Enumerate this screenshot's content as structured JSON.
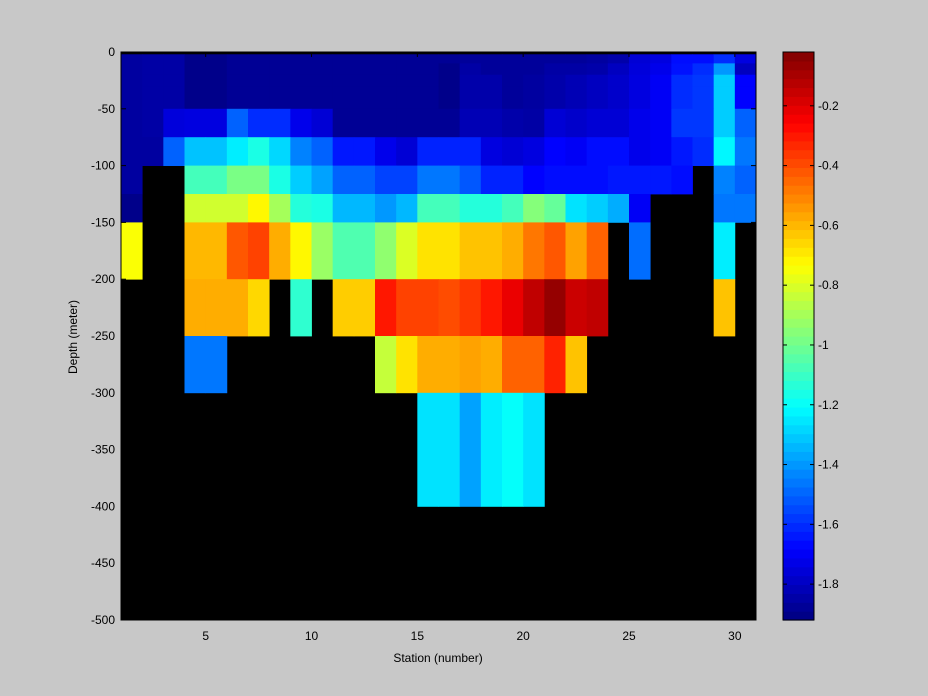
{
  "chart_data": {
    "type": "heatmap",
    "title": "",
    "xlabel": "Station (number)",
    "ylabel": "Depth (meter)",
    "xlim": [
      1,
      31
    ],
    "ylim": [
      -500,
      0
    ],
    "x_ticks": [
      5,
      10,
      15,
      20,
      25,
      30
    ],
    "y_ticks": [
      0,
      -50,
      -100,
      -150,
      -200,
      -250,
      -300,
      -350,
      -400,
      -450,
      -500
    ],
    "stations": [
      1,
      2,
      3,
      4,
      5,
      6,
      7,
      8,
      9,
      10,
      11,
      12,
      13,
      14,
      15,
      16,
      17,
      18,
      19,
      20,
      21,
      22,
      23,
      24,
      25,
      26,
      27,
      28,
      29,
      30
    ],
    "depth_bins": [
      {
        "top": 0,
        "bottom": -2
      },
      {
        "top": -2,
        "bottom": -10
      },
      {
        "top": -10,
        "bottom": -20
      },
      {
        "top": -20,
        "bottom": -30
      },
      {
        "top": -30,
        "bottom": -50
      },
      {
        "top": -50,
        "bottom": -75
      },
      {
        "top": -75,
        "bottom": -100
      },
      {
        "top": -100,
        "bottom": -125
      },
      {
        "top": -125,
        "bottom": -150
      },
      {
        "top": -150,
        "bottom": -200
      },
      {
        "top": -200,
        "bottom": -250
      },
      {
        "top": -250,
        "bottom": -300
      },
      {
        "top": -300,
        "bottom": -400
      },
      {
        "top": -400,
        "bottom": -500
      }
    ],
    "values": [
      [
        null,
        null,
        null,
        null,
        null,
        null,
        null,
        null,
        null,
        null,
        null,
        null,
        null,
        null,
        null,
        null,
        null,
        null,
        null,
        null,
        null,
        null,
        null,
        null,
        null,
        null,
        null,
        null,
        null,
        null
      ],
      [
        -1.86,
        -1.85,
        -1.85,
        -1.9,
        -1.9,
        -1.88,
        -1.88,
        -1.88,
        -1.88,
        -1.88,
        -1.88,
        -1.88,
        -1.88,
        -1.88,
        -1.88,
        -1.88,
        -1.87,
        -1.87,
        -1.87,
        -1.87,
        -1.87,
        -1.87,
        -1.86,
        -1.84,
        -1.76,
        -1.74,
        -1.66,
        -1.66,
        -1.6,
        -1.74
      ],
      [
        -1.86,
        -1.85,
        -1.85,
        -1.9,
        -1.9,
        -1.88,
        -1.88,
        -1.88,
        -1.88,
        -1.88,
        -1.88,
        -1.88,
        -1.88,
        -1.88,
        -1.88,
        -1.9,
        -1.85,
        -1.87,
        -1.87,
        -1.87,
        -1.85,
        -1.85,
        -1.84,
        -1.8,
        -1.75,
        -1.72,
        -1.65,
        -1.6,
        -1.4,
        -1.8
      ],
      [
        -1.86,
        -1.85,
        -1.85,
        -1.9,
        -1.9,
        -1.88,
        -1.88,
        -1.88,
        -1.88,
        -1.88,
        -1.88,
        -1.88,
        -1.88,
        -1.88,
        -1.88,
        -1.9,
        -1.84,
        -1.84,
        -1.87,
        -1.86,
        -1.84,
        -1.82,
        -1.8,
        -1.78,
        -1.74,
        -1.7,
        -1.6,
        -1.58,
        -1.3,
        -1.68
      ],
      [
        -1.86,
        -1.85,
        -1.85,
        -1.9,
        -1.9,
        -1.88,
        -1.88,
        -1.88,
        -1.88,
        -1.88,
        -1.88,
        -1.88,
        -1.88,
        -1.88,
        -1.88,
        -1.9,
        -1.84,
        -1.84,
        -1.87,
        -1.86,
        -1.84,
        -1.82,
        -1.8,
        -1.78,
        -1.74,
        -1.7,
        -1.6,
        -1.58,
        -1.3,
        -1.68
      ],
      [
        -1.86,
        -1.85,
        -1.75,
        -1.74,
        -1.74,
        -1.5,
        -1.6,
        -1.6,
        -1.72,
        -1.76,
        -1.88,
        -1.88,
        -1.88,
        -1.88,
        -1.88,
        -1.88,
        -1.82,
        -1.82,
        -1.84,
        -1.85,
        -1.76,
        -1.78,
        -1.76,
        -1.76,
        -1.72,
        -1.7,
        -1.58,
        -1.58,
        -1.3,
        -1.5
      ],
      [
        -1.86,
        -1.86,
        -1.5,
        -1.32,
        -1.32,
        -1.24,
        -1.16,
        -1.28,
        -1.44,
        -1.5,
        -1.64,
        -1.64,
        -1.72,
        -1.76,
        -1.62,
        -1.62,
        -1.62,
        -1.74,
        -1.76,
        -1.74,
        -1.68,
        -1.7,
        -1.66,
        -1.66,
        -1.72,
        -1.7,
        -1.64,
        -1.6,
        -1.22,
        -1.46
      ],
      [
        -1.86,
        null,
        null,
        -1.08,
        -1.08,
        -0.98,
        -0.98,
        -1.16,
        -1.3,
        -1.38,
        -1.5,
        -1.5,
        -1.56,
        -1.56,
        -1.46,
        -1.46,
        -1.52,
        -1.62,
        -1.62,
        -1.68,
        -1.66,
        -1.66,
        -1.66,
        -1.64,
        -1.64,
        -1.64,
        -1.66,
        null,
        -1.44,
        -1.5
      ],
      [
        -1.9,
        null,
        null,
        -0.82,
        -0.82,
        -0.82,
        -0.72,
        -0.9,
        -1.14,
        -1.16,
        -1.34,
        -1.34,
        -1.4,
        -1.34,
        -1.08,
        -1.08,
        -1.14,
        -1.14,
        -1.08,
        -0.96,
        -1.02,
        -1.26,
        -1.3,
        -1.36,
        -1.7,
        null,
        null,
        null,
        -1.46,
        -1.46
      ],
      [
        -0.74,
        null,
        null,
        -0.6,
        -0.6,
        -0.42,
        -0.38,
        -0.58,
        -0.72,
        -0.92,
        -1.06,
        -1.06,
        -0.94,
        -0.8,
        -0.68,
        -0.68,
        -0.62,
        -0.62,
        -0.58,
        -0.48,
        -0.42,
        -0.56,
        -0.44,
        null,
        -1.48,
        null,
        null,
        null,
        -1.24,
        null
      ],
      [
        null,
        null,
        null,
        -0.58,
        -0.58,
        -0.58,
        -0.66,
        null,
        -1.12,
        null,
        -0.64,
        -0.64,
        -0.3,
        -0.38,
        -0.38,
        -0.4,
        -0.36,
        -0.3,
        -0.22,
        -0.14,
        -0.06,
        -0.16,
        -0.14,
        null,
        null,
        null,
        null,
        null,
        -0.62,
        null
      ],
      [
        null,
        null,
        null,
        -1.46,
        -1.46,
        null,
        null,
        null,
        null,
        null,
        null,
        null,
        -0.84,
        -0.68,
        -0.58,
        -0.58,
        -0.56,
        -0.58,
        -0.44,
        -0.44,
        -0.32,
        -0.62,
        null,
        null,
        null,
        null,
        null,
        null,
        null,
        null
      ],
      [
        null,
        null,
        null,
        null,
        null,
        null,
        null,
        null,
        null,
        null,
        null,
        null,
        null,
        null,
        -1.26,
        -1.26,
        -1.38,
        -1.24,
        -1.2,
        -1.26,
        null,
        null,
        null,
        null,
        null,
        null,
        null,
        null,
        null,
        null
      ],
      [
        null,
        null,
        null,
        null,
        null,
        null,
        null,
        null,
        null,
        null,
        null,
        null,
        null,
        null,
        null,
        null,
        null,
        null,
        null,
        null,
        null,
        null,
        null,
        null,
        null,
        null,
        null,
        null,
        null,
        null
      ]
    ],
    "missing_color": "#000000",
    "colormap": "jet",
    "colorbar": {
      "range": [
        -1.92,
        -0.02
      ],
      "ticks": [
        -0.2,
        -0.4,
        -0.6,
        -0.8,
        -1,
        -1.2,
        -1.4,
        -1.6,
        -1.8
      ],
      "tick_labels": [
        "-0.2",
        "-0.4",
        "-0.6",
        "-0.8",
        "-1",
        "-1.2",
        "-1.4",
        "-1.6",
        "-1.8"
      ]
    },
    "background_color": "#c8c8c8",
    "grid": false
  }
}
